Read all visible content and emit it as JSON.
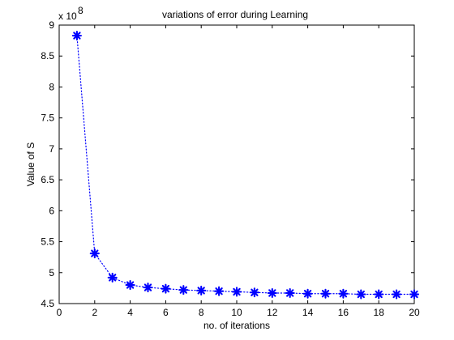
{
  "chart_data": {
    "type": "line",
    "title": "variations of error during Learning",
    "xlabel": "no. of iterations",
    "ylabel": "Value of S",
    "y_multiplier": {
      "base": "x 10",
      "exponent": "8"
    },
    "xlim": [
      0,
      20
    ],
    "ylim": [
      4.5,
      9
    ],
    "xticks": [
      0,
      2,
      4,
      6,
      8,
      10,
      12,
      14,
      16,
      18,
      20
    ],
    "yticks": [
      4.5,
      5,
      5.5,
      6,
      6.5,
      7,
      7.5,
      8,
      8.5,
      9
    ],
    "ytick_labels": [
      "4.5",
      "5",
      "5.5",
      "6",
      "6.5",
      "7",
      "7.5",
      "8",
      "8.5",
      "9"
    ],
    "grid": false,
    "series": [
      {
        "x": [
          1,
          2,
          3,
          4,
          5,
          6,
          7,
          8,
          9,
          10,
          11,
          12,
          13,
          14,
          15,
          16,
          17,
          18,
          19,
          20
        ],
        "y": [
          8.83,
          5.31,
          4.92,
          4.8,
          4.76,
          4.74,
          4.72,
          4.71,
          4.7,
          4.69,
          4.68,
          4.67,
          4.67,
          4.66,
          4.66,
          4.66,
          4.65,
          4.65,
          4.65,
          4.65
        ],
        "color": "#0000ff",
        "line_style": "dotted",
        "marker": "asterisk"
      }
    ]
  }
}
